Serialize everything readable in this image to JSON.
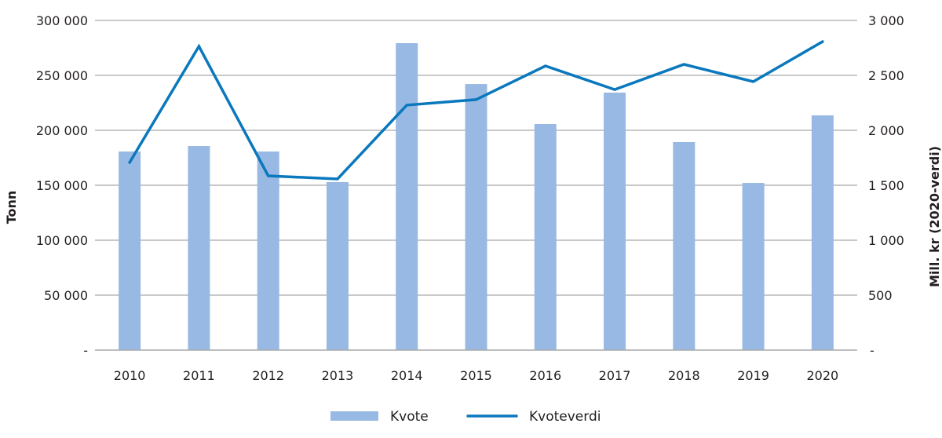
{
  "chart_data": {
    "type": "bar+line",
    "title": "",
    "categories": [
      "2010",
      "2011",
      "2012",
      "2013",
      "2014",
      "2015",
      "2016",
      "2017",
      "2018",
      "2019",
      "2020"
    ],
    "series": [
      {
        "name": "Kvote",
        "type": "bar",
        "axis": "left",
        "color": "#98b9e3",
        "values": [
          180700,
          185700,
          180700,
          152900,
          279300,
          242100,
          205700,
          234300,
          189300,
          152100,
          213600
        ]
      },
      {
        "name": "Kvoteverdi",
        "type": "line",
        "axis": "right",
        "color": "#0a78bd",
        "values": [
          1707,
          2764,
          1586,
          1557,
          2229,
          2279,
          2586,
          2371,
          2600,
          2443,
          2807
        ]
      }
    ],
    "y_left": {
      "label": "Tonn",
      "ylim": [
        0,
        300000
      ],
      "ticks": [
        0,
        50000,
        100000,
        150000,
        200000,
        250000,
        300000
      ],
      "tick_labels": [
        "-",
        "50 000",
        "100 000",
        "150 000",
        "200 000",
        "250 000",
        "300 000"
      ]
    },
    "y_right": {
      "label": "Mill. kr (2020-verdi)",
      "ylim": [
        0,
        3000
      ],
      "ticks": [
        0,
        500,
        1000,
        1500,
        2000,
        2500,
        3000
      ],
      "tick_labels": [
        "-",
        "500",
        "1 000",
        "1 500",
        "2 000",
        "2 500",
        "3 000"
      ]
    },
    "xlabel": "",
    "grid": true,
    "legend_position": "bottom"
  },
  "legend": {
    "items": [
      {
        "label": "Kvote",
        "kind": "bar-swatch"
      },
      {
        "label": "Kvoteverdi",
        "kind": "line-swatch"
      }
    ]
  },
  "colors": {
    "gridline": "#a7a9ac",
    "axis": "#a7a9ac",
    "bar": "#98b9e3",
    "line": "#0a78bd"
  }
}
